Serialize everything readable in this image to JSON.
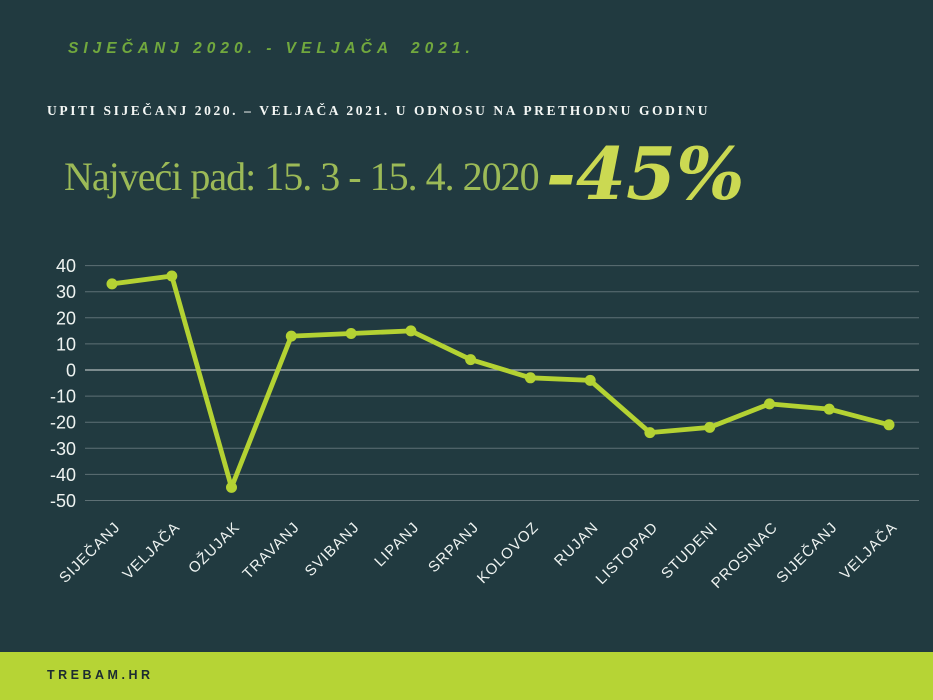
{
  "colors": {
    "background": "#213a40",
    "lime": "#b6d435",
    "line": "#b4d233",
    "period_green": "#71a83e",
    "headline_green": "#9cba57",
    "percent_green": "#cbd952",
    "subtitle_white": "#f4f7f5",
    "axis_text": "#eef3f1",
    "grid": "rgba(255,255,255,0.28)",
    "grid_zero": "rgba(255,255,255,0.55)",
    "footer_text": "#1c2b31"
  },
  "header": {
    "period": "SIJEČANJ 2020. - VELJAČA  2021.",
    "subtitle": "UPITI SIJEČANJ 2020. – VELJAČA 2021. U ODNOSU NA PRETHODNU GODINU",
    "headline": "Najveći pad: 15. 3 - 15. 4. 2020",
    "percent": "-45%"
  },
  "footer": {
    "brand": "TREBAM.HR"
  },
  "chart_data": {
    "type": "line",
    "title": "UPITI SIJEČANJ 2020. – VELJAČA 2021. U ODNOSU NA PRETHODNU GODINU",
    "categories": [
      "SIJEČANJ",
      "VELJAČA",
      "OŽUJAK",
      "TRAVANJ",
      "SVIBANJ",
      "LIPANJ",
      "SRPANJ",
      "KOLOVOZ",
      "RUJAN",
      "LISTOPAD",
      "STUDENI",
      "PROSINAC",
      "SIJEČANJ",
      "VELJAČA"
    ],
    "values": [
      33,
      36,
      -45,
      13,
      14,
      15,
      4,
      -3,
      -4,
      -24,
      -22,
      -13,
      -15,
      -21
    ],
    "yticks": [
      40,
      30,
      20,
      10,
      0,
      -10,
      -20,
      -30,
      -40,
      -50
    ],
    "ylim": [
      -50,
      40
    ],
    "xlabel": "",
    "ylabel": "",
    "grid": true,
    "legend": false,
    "line_color": "#b4d233",
    "marker": "circle"
  }
}
